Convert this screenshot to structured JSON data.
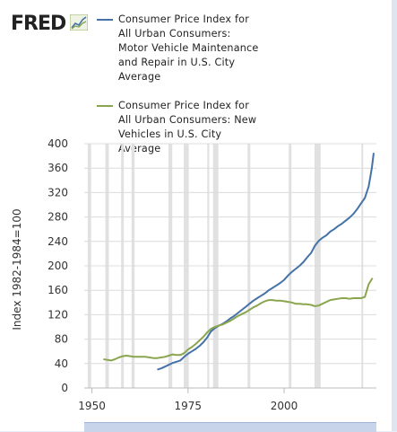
{
  "brand": {
    "logo_text": "FRED"
  },
  "chart_data": {
    "type": "line",
    "title": "",
    "xlabel": "",
    "ylabel": "Index 1982-1984=100",
    "xlim": [
      1948,
      2024
    ],
    "ylim": [
      0,
      400
    ],
    "yticks": [
      0,
      40,
      80,
      120,
      160,
      200,
      240,
      280,
      320,
      360,
      400
    ],
    "ytick_labels": [
      "0",
      "40",
      "80",
      "120",
      "160",
      "200",
      "240",
      "280",
      "320",
      "360",
      "400"
    ],
    "xticks": [
      1950,
      1975,
      2000
    ],
    "xtick_labels": [
      "1950",
      "1975",
      "2000"
    ],
    "grid": true,
    "legend_position": "top",
    "recessions": [
      [
        1948.9,
        1949.8
      ],
      [
        1953.5,
        1954.4
      ],
      [
        1957.6,
        1958.3
      ],
      [
        1960.3,
        1961.1
      ],
      [
        1969.9,
        1970.9
      ],
      [
        1973.9,
        1975.2
      ],
      [
        1980.0,
        1980.5
      ],
      [
        1981.5,
        1982.9
      ],
      [
        1990.5,
        1991.2
      ],
      [
        2001.2,
        2001.9
      ],
      [
        2007.9,
        2009.5
      ],
      [
        2020.1,
        2020.4
      ]
    ],
    "series": [
      {
        "name": "Consumer Price Index for All Urban Consumers: Motor Vehicle Maintenance and Repair in U.S. City Average",
        "color": "#4572a7",
        "x": [
          1967,
          1968,
          1969,
          1970,
          1971,
          1972,
          1973,
          1974,
          1975,
          1976,
          1977,
          1978,
          1979,
          1980,
          1981,
          1982,
          1983,
          1984,
          1985,
          1986,
          1987,
          1988,
          1989,
          1990,
          1991,
          1992,
          1993,
          1994,
          1995,
          1996,
          1997,
          1998,
          1999,
          2000,
          2001,
          2002,
          2003,
          2004,
          2005,
          2006,
          2007,
          2008,
          2009,
          2010,
          2011,
          2012,
          2013,
          2014,
          2015,
          2016,
          2017,
          2018,
          2019,
          2020,
          2021,
          2022,
          2022.8,
          2023.3
        ],
        "values": [
          30,
          32,
          35,
          38,
          41,
          43,
          45,
          51,
          56,
          60,
          64,
          69,
          75,
          83,
          93,
          98,
          102,
          105,
          109,
          114,
          118,
          123,
          128,
          133,
          138,
          143,
          147,
          151,
          155,
          160,
          164,
          168,
          172,
          177,
          184,
          190,
          195,
          200,
          206,
          214,
          221,
          233,
          241,
          246,
          250,
          256,
          260,
          265,
          269,
          274,
          279,
          285,
          293,
          302,
          311,
          330,
          360,
          385
        ]
      },
      {
        "name": "Consumer Price Index for All Urban Consumers: New Vehicles in U.S. City Average",
        "color": "#89a54e",
        "x": [
          1953,
          1954,
          1955,
          1956,
          1957,
          1958,
          1959,
          1960,
          1961,
          1962,
          1963,
          1964,
          1965,
          1966,
          1967,
          1968,
          1969,
          1970,
          1971,
          1972,
          1973,
          1974,
          1975,
          1976,
          1977,
          1978,
          1979,
          1980,
          1981,
          1982,
          1983,
          1984,
          1985,
          1986,
          1987,
          1988,
          1989,
          1990,
          1991,
          1992,
          1993,
          1994,
          1995,
          1996,
          1997,
          1998,
          1999,
          2000,
          2001,
          2002,
          2003,
          2004,
          2005,
          2006,
          2007,
          2008,
          2009,
          2010,
          2011,
          2012,
          2013,
          2014,
          2015,
          2016,
          2017,
          2018,
          2019,
          2020,
          2021,
          2022,
          2023
        ],
        "values": [
          47,
          46,
          45,
          47,
          50,
          52,
          53,
          52,
          51,
          51,
          51,
          51,
          50,
          49,
          49,
          50,
          51,
          53,
          55,
          54,
          54,
          57,
          63,
          67,
          72,
          78,
          84,
          91,
          97,
          100,
          102,
          104,
          107,
          110,
          114,
          118,
          121,
          124,
          128,
          132,
          135,
          139,
          142,
          144,
          144,
          143,
          143,
          142,
          141,
          140,
          138,
          138,
          137,
          137,
          136,
          134,
          135,
          138,
          141,
          144,
          145,
          146,
          147,
          147,
          146,
          147,
          147,
          147,
          149,
          170,
          180
        ]
      }
    ]
  }
}
